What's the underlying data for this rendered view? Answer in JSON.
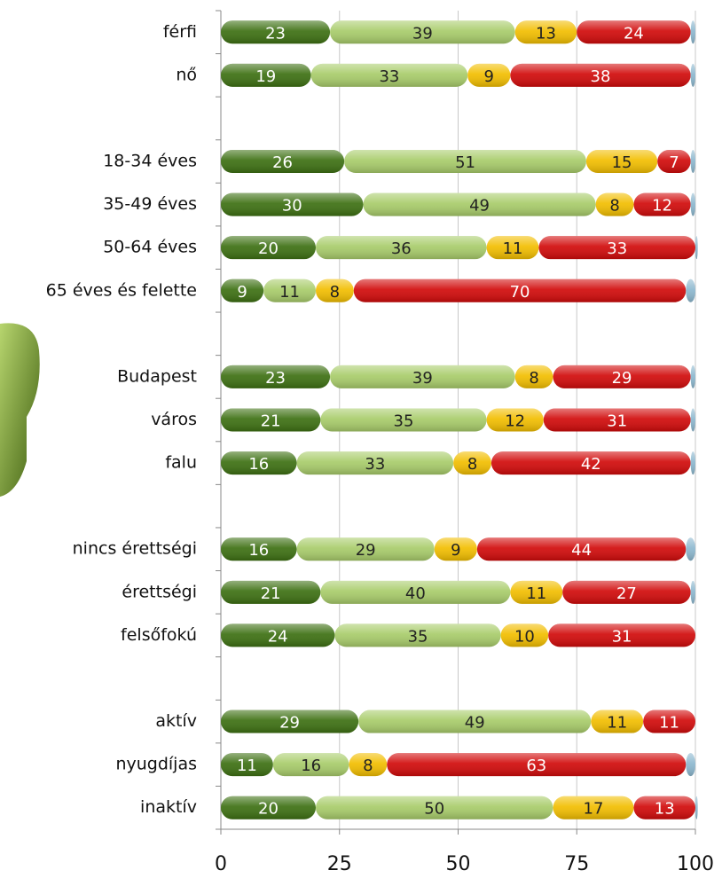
{
  "chart_data": {
    "type": "stacked-bar-horizontal",
    "categories": [
      "férfi",
      "nő",
      null,
      "18-34 éves",
      "35-49 éves",
      "50-64 éves",
      "65 éves és felette",
      null,
      "Budapest",
      "város",
      "falu",
      null,
      "nincs érettségi",
      "érettségi",
      "felsőfokú",
      null,
      "aktív",
      "nyugdíjas",
      "inaktív"
    ],
    "series": [
      {
        "color": "#3d7012",
        "label_color": "#ffffff",
        "values": [
          23,
          19,
          null,
          26,
          30,
          20,
          9,
          null,
          23,
          21,
          16,
          null,
          16,
          21,
          24,
          null,
          29,
          11,
          20
        ]
      },
      {
        "color": "#a8cc6a",
        "label_color": "#222222",
        "values": [
          39,
          33,
          null,
          51,
          49,
          36,
          11,
          null,
          39,
          35,
          33,
          null,
          29,
          40,
          35,
          null,
          49,
          16,
          50
        ]
      },
      {
        "color": "#f2be00",
        "label_color": "#222222",
        "values": [
          13,
          9,
          null,
          15,
          8,
          11,
          8,
          null,
          8,
          12,
          8,
          null,
          9,
          11,
          10,
          null,
          11,
          8,
          17
        ]
      },
      {
        "color": "#d10a0a",
        "label_color": "#ffffff",
        "values": [
          24,
          38,
          null,
          7,
          12,
          33,
          70,
          null,
          29,
          31,
          42,
          null,
          44,
          27,
          31,
          null,
          11,
          63,
          13
        ]
      },
      {
        "color": "#8db8cf",
        "values": [
          1,
          1,
          null,
          1,
          1,
          0.5,
          2,
          null,
          1,
          1,
          1,
          null,
          2,
          1,
          0,
          null,
          0,
          2,
          0.5
        ]
      }
    ],
    "xlim": [
      0,
      100
    ],
    "xticks": [
      0,
      25,
      50,
      75,
      100
    ],
    "grid": true
  }
}
